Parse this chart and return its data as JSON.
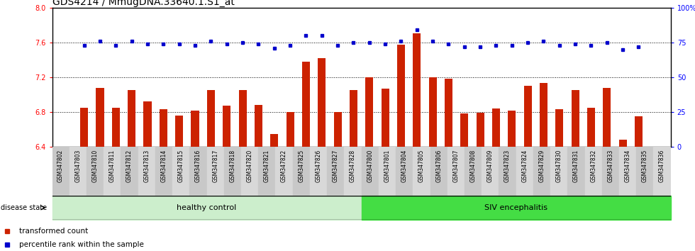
{
  "title": "GDS4214 / MmugDNA.33640.1.S1_at",
  "samples": [
    "GSM347802",
    "GSM347803",
    "GSM347810",
    "GSM347811",
    "GSM347812",
    "GSM347813",
    "GSM347814",
    "GSM347815",
    "GSM347816",
    "GSM347817",
    "GSM347818",
    "GSM347820",
    "GSM347821",
    "GSM347822",
    "GSM347825",
    "GSM347826",
    "GSM347827",
    "GSM347828",
    "GSM347800",
    "GSM347801",
    "GSM347804",
    "GSM347805",
    "GSM347806",
    "GSM347807",
    "GSM347808",
    "GSM347809",
    "GSM347823",
    "GSM347824",
    "GSM347829",
    "GSM347830",
    "GSM347831",
    "GSM347832",
    "GSM347833",
    "GSM347834",
    "GSM347835",
    "GSM347836"
  ],
  "bar_values": [
    6.85,
    7.08,
    6.85,
    7.05,
    6.92,
    6.83,
    6.76,
    6.82,
    7.05,
    6.87,
    7.05,
    6.88,
    6.55,
    6.8,
    7.38,
    7.42,
    6.8,
    7.05,
    7.2,
    7.07,
    7.57,
    7.7,
    7.2,
    7.18,
    6.78,
    6.79,
    6.84,
    6.82,
    7.1,
    7.13,
    6.83,
    7.05,
    6.85,
    7.08,
    6.48,
    6.75
  ],
  "percentile_values": [
    73,
    76,
    73,
    76,
    74,
    74,
    74,
    73,
    76,
    74,
    75,
    74,
    71,
    73,
    80,
    80,
    73,
    75,
    75,
    74,
    76,
    84,
    76,
    74,
    72,
    72,
    73,
    73,
    75,
    76,
    73,
    74,
    73,
    75,
    70,
    72
  ],
  "healthy_count": 18,
  "ylim_left": [
    6.4,
    8.0
  ],
  "ylim_right": [
    0,
    100
  ],
  "yticks_left": [
    6.4,
    6.8,
    7.2,
    7.6,
    8.0
  ],
  "yticks_right": [
    0,
    25,
    50,
    75,
    100
  ],
  "ytick_labels_right": [
    "0",
    "25",
    "50",
    "75",
    "100%"
  ],
  "bar_color": "#cc2200",
  "dot_color": "#0000cc",
  "healthy_color": "#cceecc",
  "siv_color": "#44dd44",
  "title_fontsize": 10,
  "tick_fontsize": 7,
  "label_fontsize": 8,
  "dotted_lines": [
    6.8,
    7.2,
    7.6
  ]
}
